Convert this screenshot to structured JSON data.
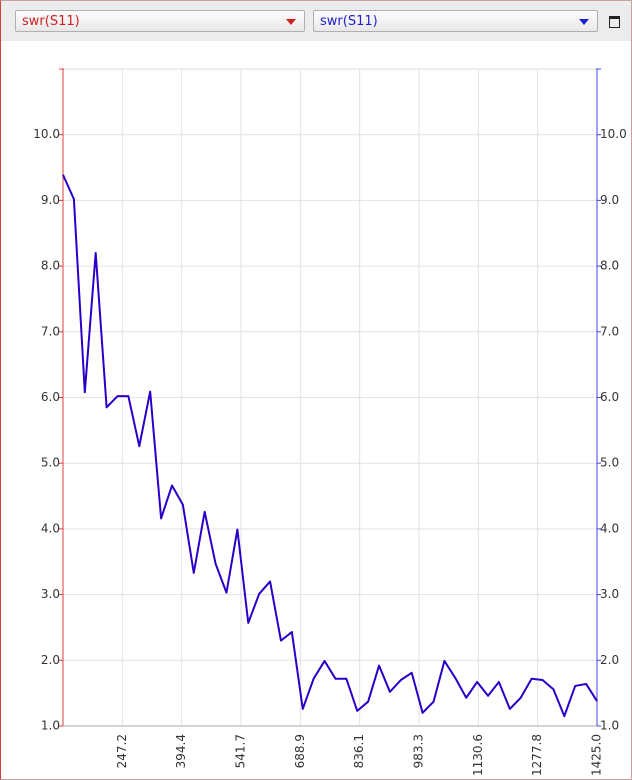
{
  "selectors": [
    {
      "label": "swr(S11)",
      "color": "#d02020"
    },
    {
      "label": "swr(S11)",
      "color": "#2020d0"
    }
  ],
  "chart_data": {
    "type": "line",
    "x": [
      100.0,
      127.0,
      154.1,
      181.1,
      208.2,
      235.2,
      262.2,
      289.3,
      316.3,
      343.4,
      370.4,
      397.4,
      424.5,
      451.5,
      478.6,
      505.6,
      532.7,
      559.7,
      586.7,
      613.8,
      640.8,
      667.9,
      694.9,
      721.9,
      749.0,
      776.0,
      803.1,
      830.1,
      857.1,
      884.2,
      911.2,
      938.3,
      965.3,
      992.3,
      1019.4,
      1046.4,
      1073.5,
      1100.5,
      1127.6,
      1154.6,
      1181.6,
      1208.7,
      1235.7,
      1262.8,
      1289.8,
      1316.8,
      1343.9,
      1370.9,
      1398.0,
      1425.0
    ],
    "series": [
      {
        "name": "swr(S11)",
        "color": "#2a00c8",
        "values": [
          9.39,
          9.02,
          6.08,
          8.2,
          5.85,
          6.02,
          6.02,
          5.26,
          6.09,
          4.16,
          4.66,
          4.37,
          3.33,
          4.26,
          3.47,
          3.03,
          3.99,
          2.57,
          3.01,
          3.2,
          2.3,
          2.43,
          1.26,
          1.72,
          1.99,
          1.72,
          1.72,
          1.23,
          1.37,
          1.92,
          1.52,
          1.7,
          1.81,
          1.2,
          1.37,
          1.99,
          1.73,
          1.43,
          1.67,
          1.46,
          1.67,
          1.26,
          1.43,
          1.72,
          1.7,
          1.56,
          1.15,
          1.61,
          1.64,
          1.38
        ]
      }
    ],
    "xlim": [
      100,
      1425
    ],
    "xticks": [
      247.2,
      394.4,
      541.7,
      688.9,
      836.1,
      983.3,
      1130.6,
      1277.8,
      {
        "value": 1425,
        "label": "1425.0"
      }
    ],
    "ylim": [
      1,
      11
    ],
    "yticks": [
      {
        "value": 1,
        "label": "1.0"
      },
      {
        "value": 2,
        "label": "2.0"
      },
      {
        "value": 3,
        "label": "3.0"
      },
      {
        "value": 4,
        "label": "4.0"
      },
      {
        "value": 5,
        "label": "5.0"
      },
      {
        "value": 6,
        "label": "6.0"
      },
      {
        "value": 7,
        "label": "7.0"
      },
      {
        "value": 8,
        "label": "8.0"
      },
      {
        "value": 9,
        "label": "9.0"
      },
      {
        "value": 10,
        "label": "10.0"
      }
    ],
    "y2lim": [
      1,
      11
    ],
    "y2ticks": [
      {
        "value": 1,
        "label": "1.0"
      },
      {
        "value": 2,
        "label": "2.0"
      },
      {
        "value": 3,
        "label": "3.0"
      },
      {
        "value": 4,
        "label": "4.0"
      },
      {
        "value": 5,
        "label": "5.0"
      },
      {
        "value": 6,
        "label": "6.0"
      },
      {
        "value": 7,
        "label": "7.0"
      },
      {
        "value": 8,
        "label": "8.0"
      },
      {
        "value": 9,
        "label": "9.0"
      },
      {
        "value": 10,
        "label": "10.0"
      }
    ],
    "y_axis_color": "#e03c3c",
    "y2_axis_color": "#4646e6",
    "grid": true
  }
}
